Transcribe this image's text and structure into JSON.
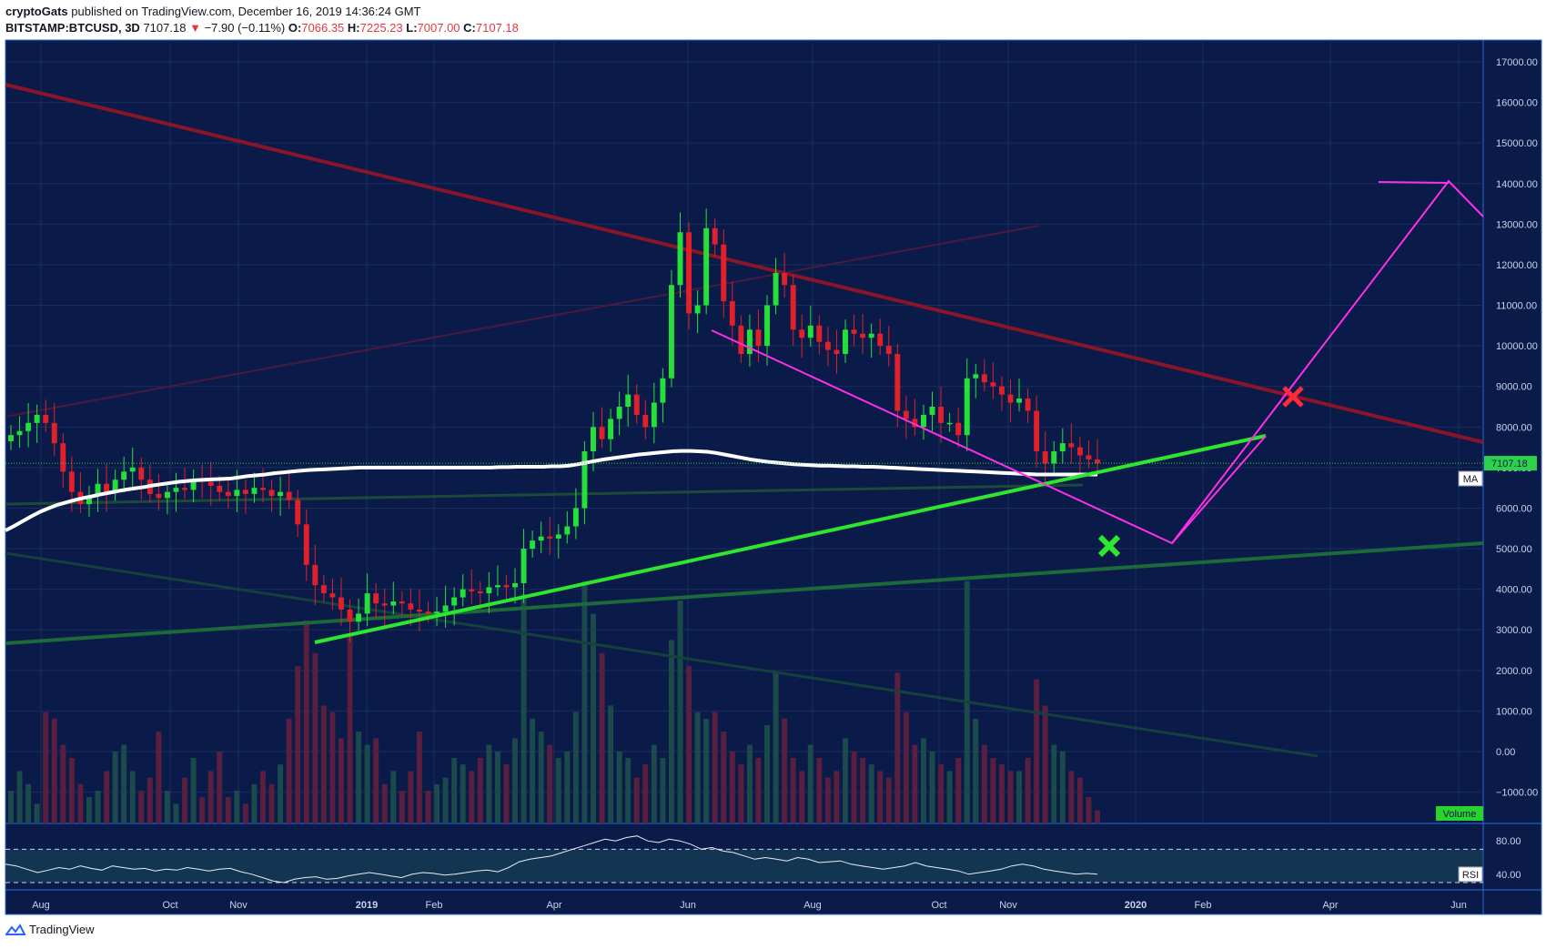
{
  "header": {
    "author": "cryptoGats",
    "published_text": "published on TradingView.com, December 16, 2019 14:36:24 GMT",
    "symbol": "BITSTAMP:BTCUSD, 3D",
    "last": "7107.18",
    "arrow": "▼",
    "change": "−7.90 (−0.11%)",
    "o_label": "O:",
    "o_value": "7066.35",
    "h_label": "H:",
    "h_value": "7225.23",
    "l_label": "L:",
    "l_value": "7007.00",
    "c_label": "C:",
    "c_value": "7107.18"
  },
  "footer": {
    "brand": "TradingView"
  },
  "colors": {
    "background": "#0a1b4a",
    "grid": "#1b2d5e",
    "border": "#2e6bd8",
    "up": "#26e03a",
    "down": "#e0202a",
    "vol_up": "#1b4a4a",
    "vol_down": "#5a1f3e",
    "ma": "#ffffff",
    "magenta": "#ff2fe8",
    "bright_green": "#2ee62e",
    "dark_red": "#8a1428",
    "dark_green": "#1c6a3a",
    "price_tag": "#2bd24a",
    "volume_tag": "#2bd22b"
  },
  "chart_data": {
    "type": "candlestick",
    "symbol": "BITSTAMP:BTCUSD",
    "interval": "3D",
    "y_axis": {
      "min": -1000,
      "max": 17000,
      "ticks": [
        "17000.00",
        "16000.00",
        "15000.00",
        "14000.00",
        "13000.00",
        "12000.00",
        "11000.00",
        "10000.00",
        "9000.00",
        "8000.00",
        "7000.00",
        "6000.00",
        "5000.00",
        "4000.00",
        "3000.00",
        "2000.00",
        "1000.00",
        "0.00",
        "−1000.00"
      ]
    },
    "x_axis": {
      "ticks": [
        "Aug",
        "Oct",
        "Nov",
        "2019",
        "Feb",
        "Apr",
        "Jun",
        "Aug",
        "Oct",
        "Nov",
        "2020",
        "Feb",
        "Apr",
        "Jun"
      ],
      "bold_ticks": [
        "2019",
        "2020"
      ]
    },
    "last_price_label": "7107.18",
    "ma_label": "MA",
    "volume_label": "Volume",
    "rsi_label": "RSI",
    "rsi_axis_ticks": [
      "80.00",
      "40.00"
    ],
    "price_series": [
      7800,
      7900,
      8100,
      8300,
      8100,
      7600,
      6900,
      6400,
      6100,
      6300,
      6600,
      6400,
      6700,
      6900,
      7000,
      6700,
      6350,
      6250,
      6400,
      6500,
      6450,
      6700,
      6650,
      6550,
      6400,
      6300,
      6450,
      6350,
      6500,
      6450,
      6300,
      6400,
      6200,
      5600,
      4600,
      4100,
      3900,
      3800,
      3500,
      3200,
      3400,
      3900,
      3650,
      3600,
      3700,
      3650,
      3500,
      3450,
      3400,
      3450,
      3600,
      3800,
      4000,
      3950,
      3900,
      4050,
      4100,
      4050,
      4150,
      5000,
      5200,
      5300,
      5250,
      5350,
      5550,
      6000,
      7400,
      8000,
      7700,
      8200,
      8500,
      8800,
      8300,
      8000,
      8600,
      9200,
      11500,
      12800,
      10800,
      11000,
      12900,
      12500,
      11100,
      10500,
      9800,
      10400,
      10000,
      11000,
      11800,
      11500,
      10400,
      10200,
      10500,
      10100,
      9900,
      9800,
      10400,
      10300,
      10200,
      10300,
      10000,
      9800,
      8400,
      8200,
      8000,
      8300,
      8500,
      8100,
      8100,
      7800,
      9200,
      9300,
      9100,
      9000,
      8800,
      8600,
      8700,
      8400,
      7400,
      7100,
      7400,
      7600,
      7500,
      7300,
      7200,
      7107
    ],
    "volume_series": [
      500,
      800,
      600,
      300,
      1700,
      1600,
      1200,
      1000,
      600,
      400,
      500,
      800,
      1100,
      1200,
      800,
      500,
      700,
      1400,
      500,
      300,
      700,
      1000,
      400,
      800,
      1100,
      400,
      500,
      300,
      600,
      800,
      600,
      900,
      1600,
      2400,
      3100,
      2600,
      1800,
      1700,
      1300,
      2900,
      1400,
      1200,
      1300,
      600,
      800,
      500,
      800,
      1400,
      500,
      600,
      700,
      1000,
      900,
      800,
      1000,
      1200,
      1100,
      900,
      1300,
      3500,
      1600,
      1400,
      1200,
      1000,
      1100,
      1700,
      3700,
      3200,
      2600,
      1800,
      1100,
      1000,
      700,
      900,
      1200,
      1000,
      2800,
      3400,
      2400,
      1700,
      1600,
      1700,
      1400,
      1100,
      900,
      1200,
      1000,
      1500,
      2300,
      1600,
      1000,
      800,
      1200,
      1000,
      700,
      800,
      1300,
      1100,
      1000,
      900,
      800,
      700,
      2300,
      1700,
      1200,
      1300,
      1100,
      900,
      800,
      1000,
      3700,
      1600,
      1200,
      1000,
      900,
      800,
      800,
      1000,
      2200,
      1800,
      1200,
      1100,
      800,
      700,
      400,
      200
    ],
    "ma_series": [
      5450,
      5560,
      5680,
      5800,
      5910,
      6000,
      6080,
      6140,
      6200,
      6250,
      6290,
      6340,
      6380,
      6420,
      6460,
      6490,
      6520,
      6560,
      6590,
      6620,
      6650,
      6670,
      6690,
      6700,
      6710,
      6720,
      6730,
      6760,
      6790,
      6810,
      6830,
      6860,
      6880,
      6900,
      6920,
      6940,
      6950,
      6960,
      6970,
      6980,
      6990,
      7000,
      7000,
      7000,
      7000,
      7000,
      7000,
      7000,
      7000,
      7000,
      7000,
      7000,
      7000,
      7000,
      7000,
      7000,
      7000,
      7010,
      7010,
      7020,
      7020,
      7020,
      7020,
      7030,
      7030,
      7050,
      7080,
      7120,
      7160,
      7200,
      7230,
      7260,
      7290,
      7320,
      7340,
      7360,
      7380,
      7400,
      7410,
      7410,
      7400,
      7390,
      7360,
      7320,
      7280,
      7240,
      7200,
      7170,
      7140,
      7120,
      7100,
      7080,
      7070,
      7060,
      7050,
      7050,
      7040,
      7030,
      7030,
      7020,
      7020,
      7010,
      7000,
      6990,
      6980,
      6970,
      6960,
      6950,
      6940,
      6930,
      6920,
      6910,
      6900,
      6890,
      6880,
      6870,
      6860,
      6850,
      6840,
      6830,
      6830,
      6830,
      6830,
      6830,
      6830,
      6830,
      6830
    ],
    "rsi_series": [
      52,
      50,
      46,
      42,
      45,
      48,
      46,
      50,
      47,
      45,
      50,
      48,
      46,
      47,
      44,
      46,
      45,
      48,
      46,
      44,
      46,
      47,
      43,
      40,
      36,
      32,
      30,
      34,
      36,
      37,
      34,
      35,
      38,
      40,
      42,
      40,
      38,
      36,
      40,
      42,
      41,
      39,
      40,
      42,
      44,
      45,
      43,
      48,
      55,
      58,
      60,
      62,
      66,
      70,
      74,
      78,
      82,
      80,
      84,
      86,
      80,
      78,
      82,
      80,
      76,
      70,
      72,
      68,
      66,
      62,
      58,
      60,
      58,
      56,
      60,
      58,
      54,
      55,
      56,
      52,
      50,
      48,
      46,
      48,
      50,
      54,
      50,
      48,
      46,
      44,
      40,
      42,
      44,
      46,
      50,
      52,
      50,
      46,
      44,
      42,
      40,
      41,
      40
    ]
  }
}
